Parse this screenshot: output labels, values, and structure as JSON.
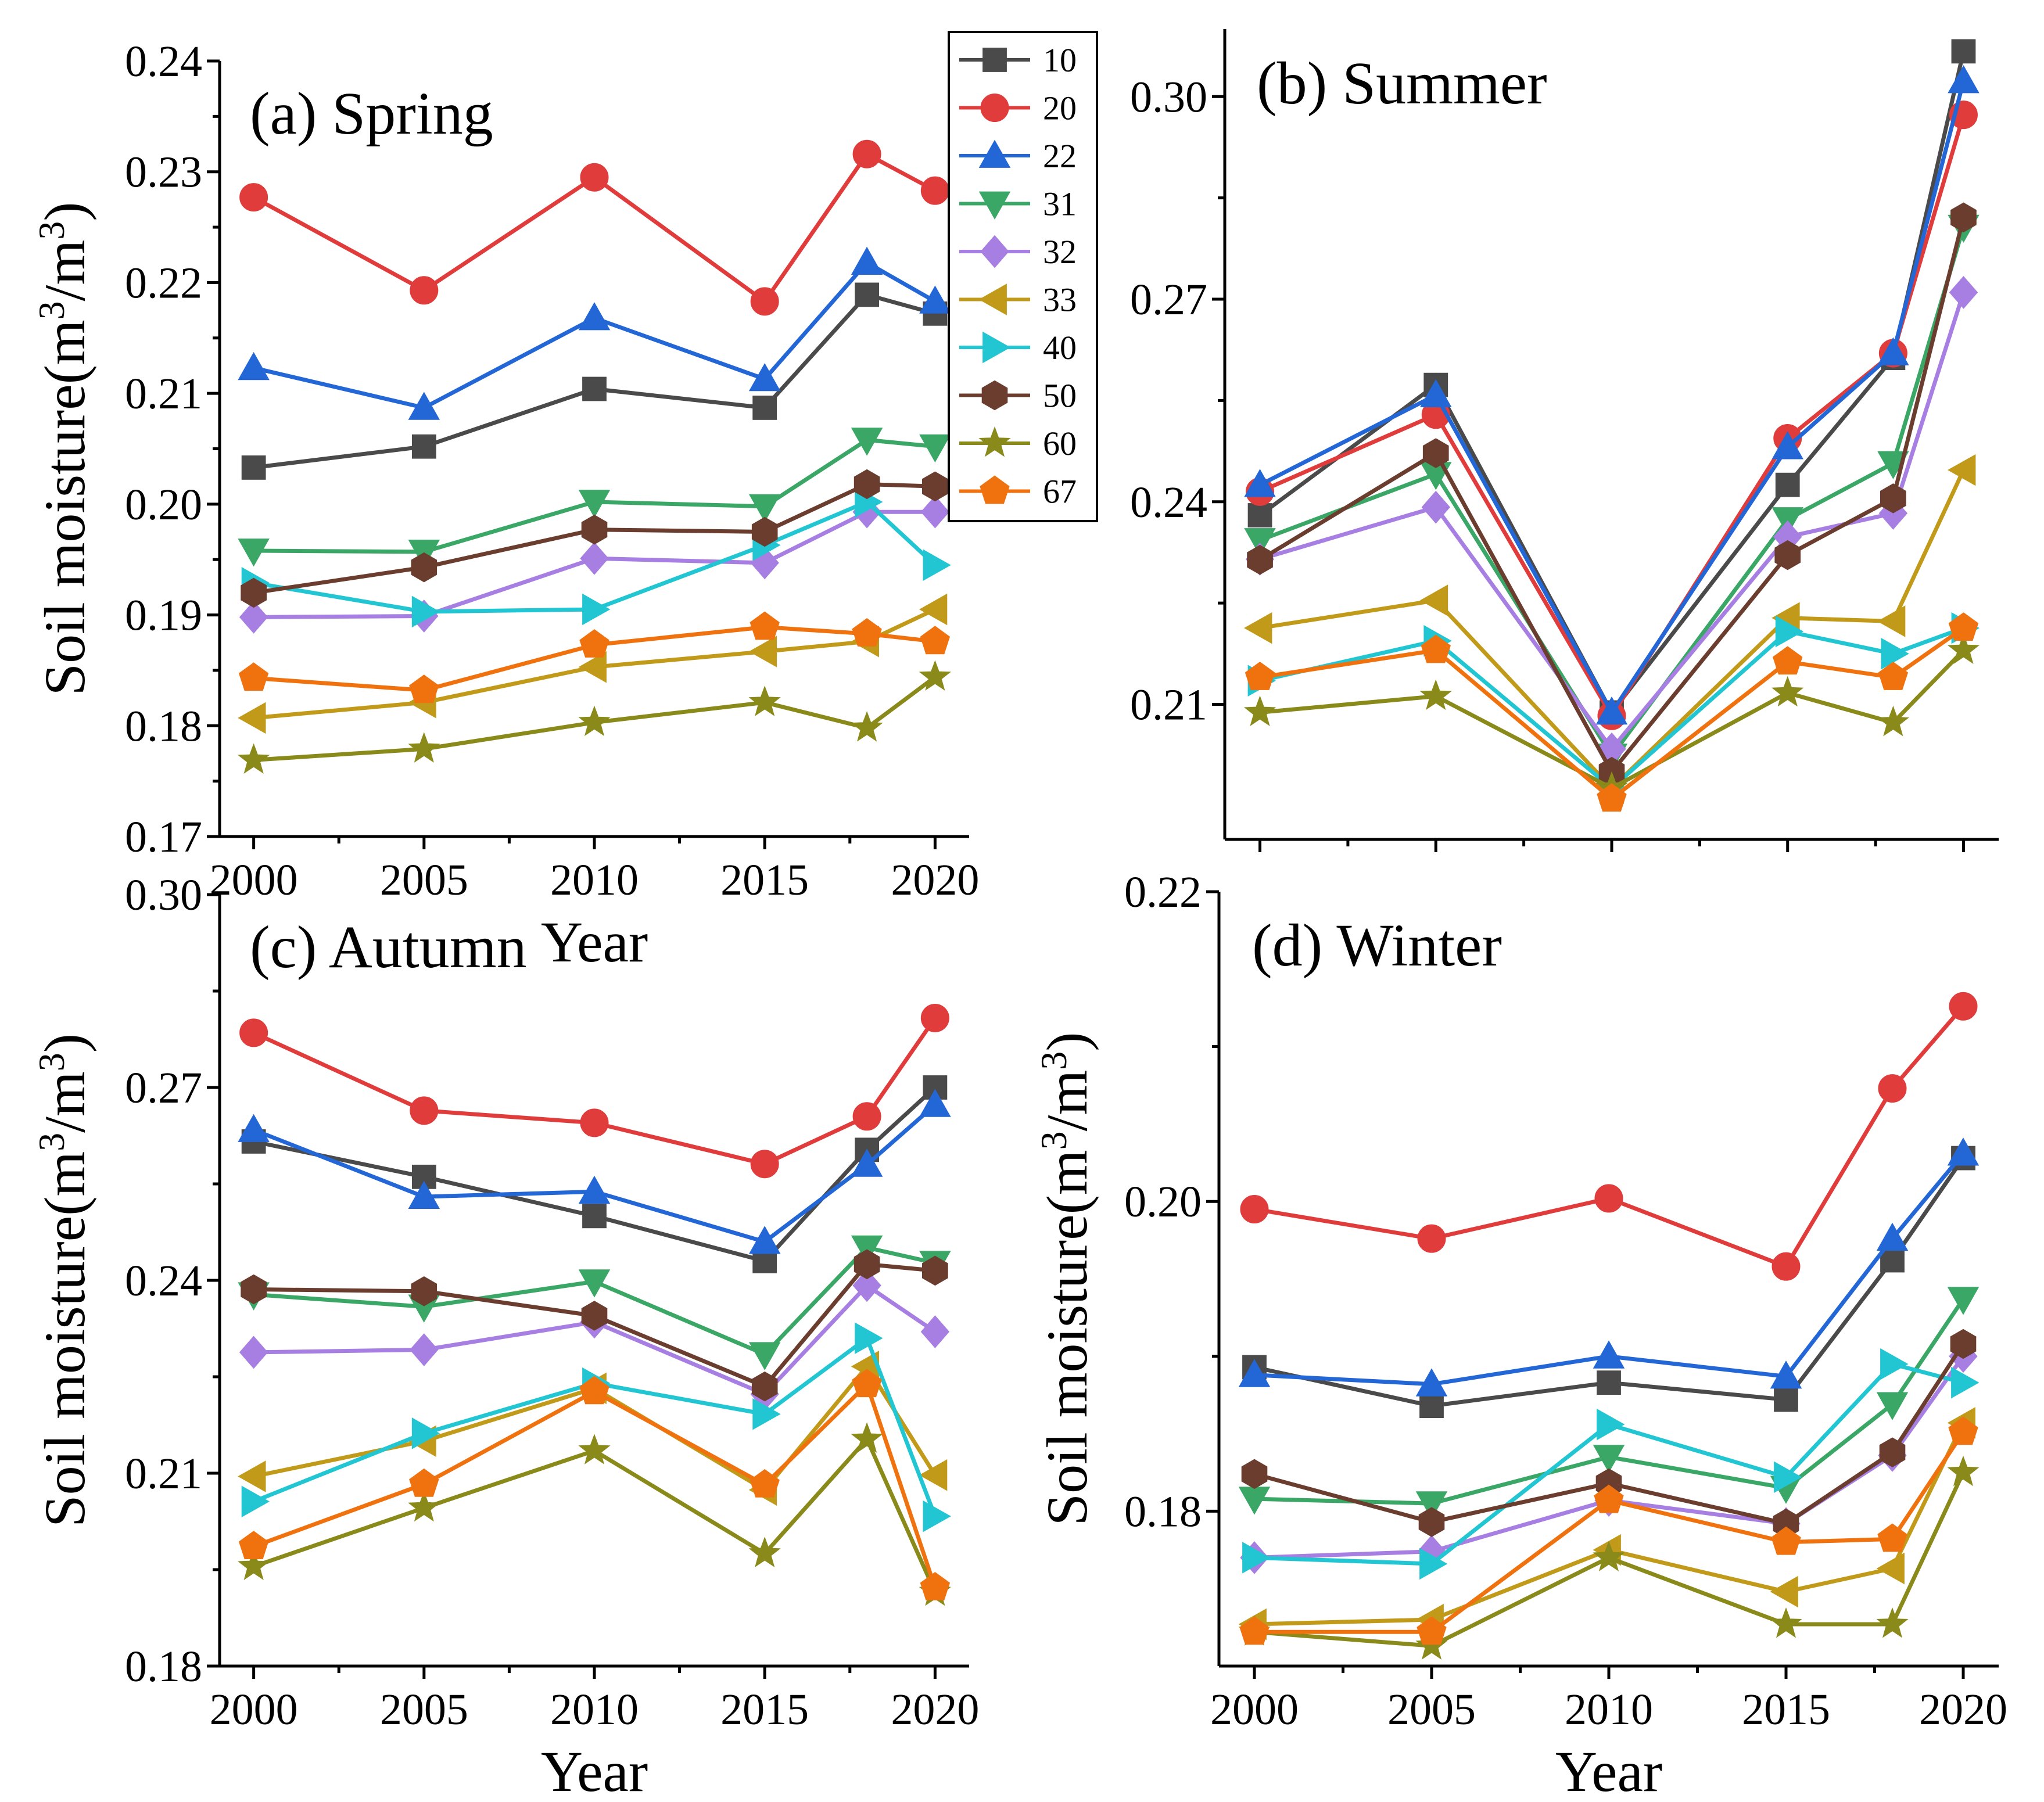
{
  "series_style": [
    {
      "name": "10",
      "color": "#4a4a4a",
      "marker": "square"
    },
    {
      "name": "20",
      "color": "#e03c3c",
      "marker": "circle"
    },
    {
      "name": "22",
      "color": "#2366d6",
      "marker": "triangle-up"
    },
    {
      "name": "31",
      "color": "#3aa766",
      "marker": "triangle-down"
    },
    {
      "name": "32",
      "color": "#a77ee2",
      "marker": "diamond"
    },
    {
      "name": "33",
      "color": "#c29a1a",
      "marker": "triangle-left"
    },
    {
      "name": "40",
      "color": "#22c6d2",
      "marker": "triangle-right"
    },
    {
      "name": "50",
      "color": "#6b3d2e",
      "marker": "hexagon"
    },
    {
      "name": "60",
      "color": "#8a8a1a",
      "marker": "star"
    },
    {
      "name": "67",
      "color": "#f0720f",
      "marker": "pentagon"
    }
  ],
  "legend": {
    "entries": [
      "10",
      "20",
      "22",
      "31",
      "32",
      "33",
      "40",
      "50",
      "60",
      "67"
    ]
  },
  "chart_data": [
    {
      "type": "line",
      "title": "(a) Spring",
      "xlabel": "Year",
      "ylabel": "Soil moisture(m³/m³)",
      "ylabel_main": "Soil moisture(m",
      "ylabel_sup1": "3",
      "ylabel_mid": "/m",
      "ylabel_sup2": "3",
      "ylabel_end": ")",
      "x": [
        2000,
        2005,
        2010,
        2015,
        2018,
        2020
      ],
      "xlim": [
        1999,
        2021
      ],
      "xticks": [
        2000,
        2005,
        2010,
        2015,
        2020
      ],
      "xtick_labels": [
        "2000",
        "2005",
        "2010",
        "2015",
        "2020"
      ],
      "ylim": [
        0.17,
        0.24
      ],
      "yticks": [
        0.17,
        0.18,
        0.19,
        0.2,
        0.21,
        0.22,
        0.23,
        0.24
      ],
      "ytick_labels": [
        "0.17",
        "0.18",
        "0.19",
        "0.20",
        "0.21",
        "0.22",
        "0.23",
        "0.24"
      ],
      "series": [
        {
          "name": "10",
          "values": [
            0.2033,
            0.2052,
            0.2104,
            0.2087,
            0.2189,
            0.2172
          ]
        },
        {
          "name": "20",
          "values": [
            0.2277,
            0.2193,
            0.2295,
            0.2183,
            0.2316,
            0.2283
          ]
        },
        {
          "name": "22",
          "values": [
            0.2123,
            0.2087,
            0.2168,
            0.2113,
            0.2218,
            0.2183
          ]
        },
        {
          "name": "31",
          "values": [
            0.1958,
            0.1957,
            0.2002,
            0.1998,
            0.2058,
            0.2052
          ]
        },
        {
          "name": "32",
          "values": [
            0.1898,
            0.1899,
            0.1951,
            0.1947,
            0.1993,
            0.1993
          ]
        },
        {
          "name": "33",
          "values": [
            0.1807,
            0.1821,
            0.1853,
            0.1867,
            0.1876,
            0.1905
          ]
        },
        {
          "name": "40",
          "values": [
            0.1929,
            0.1903,
            0.1905,
            0.1963,
            0.2002,
            0.1945
          ]
        },
        {
          "name": "50",
          "values": [
            0.192,
            0.1943,
            0.1977,
            0.1975,
            0.2018,
            0.2016
          ]
        },
        {
          "name": "60",
          "values": [
            0.1769,
            0.1779,
            0.1803,
            0.1821,
            0.1798,
            0.1844
          ]
        },
        {
          "name": "67",
          "values": [
            0.1843,
            0.1832,
            0.1873,
            0.1889,
            0.1883,
            0.1876
          ]
        }
      ]
    },
    {
      "type": "line",
      "title": "(b) Summer",
      "xlabel": "",
      "ylabel": "",
      "x": [
        2000,
        2005,
        2010,
        2015,
        2018,
        2020
      ],
      "xlim": [
        1999,
        2021
      ],
      "xticks": [
        2000,
        2005,
        2010,
        2015,
        2020
      ],
      "xtick_labels": [
        "",
        "",
        "",
        "",
        ""
      ],
      "ylim": [
        0.19,
        0.31
      ],
      "yticks": [
        0.21,
        0.24,
        0.27,
        0.3
      ],
      "ytick_labels": [
        "0.21",
        "0.24",
        "0.27",
        "0.30"
      ],
      "series": [
        {
          "name": "10",
          "values": [
            0.238,
            0.2573,
            0.2088,
            0.2425,
            0.2613,
            0.3067
          ]
        },
        {
          "name": "20",
          "values": [
            0.2415,
            0.2529,
            0.2083,
            0.2494,
            0.262,
            0.2973
          ]
        },
        {
          "name": "22",
          "values": [
            0.2425,
            0.2558,
            0.2088,
            0.2481,
            0.262,
            0.3023
          ]
        },
        {
          "name": "31",
          "values": [
            0.2343,
            0.2441,
            0.2024,
            0.2374,
            0.2457,
            0.2807
          ]
        },
        {
          "name": "32",
          "values": [
            0.2315,
            0.2392,
            0.2034,
            0.2348,
            0.2383,
            0.271
          ]
        },
        {
          "name": "33",
          "values": [
            0.2213,
            0.2254,
            0.1976,
            0.2228,
            0.2223,
            0.2447
          ]
        },
        {
          "name": "40",
          "values": [
            0.2135,
            0.2194,
            0.1976,
            0.2208,
            0.2175,
            0.2213
          ]
        },
        {
          "name": "50",
          "values": [
            0.2314,
            0.2472,
            0.2,
            0.2321,
            0.2405,
            0.2821
          ]
        },
        {
          "name": "60",
          "values": [
            0.2088,
            0.2112,
            0.1976,
            0.2117,
            0.2073,
            0.218
          ]
        },
        {
          "name": "67",
          "values": [
            0.214,
            0.218,
            0.196,
            0.2163,
            0.214,
            0.2213
          ]
        }
      ]
    },
    {
      "type": "line",
      "title": "(c) Autumn",
      "xlabel": "Year",
      "ylabel": "Soil moisture(m³/m³)",
      "ylabel_main": "Soil moisture(m",
      "ylabel_sup1": "3",
      "ylabel_mid": "/m",
      "ylabel_sup2": "3",
      "ylabel_end": ")",
      "x": [
        2000,
        2005,
        2010,
        2015,
        2018,
        2020
      ],
      "xlim": [
        1999,
        2021
      ],
      "xticks": [
        2000,
        2005,
        2010,
        2015,
        2020
      ],
      "xtick_labels": [
        "2000",
        "2005",
        "2010",
        "2015",
        "2020"
      ],
      "ylim": [
        0.18,
        0.3
      ],
      "yticks": [
        0.18,
        0.21,
        0.24,
        0.27,
        0.3
      ],
      "ytick_labels": [
        "0.18",
        "0.21",
        "0.24",
        "0.27",
        "0.30"
      ],
      "series": [
        {
          "name": "10",
          "values": [
            0.2616,
            0.2561,
            0.25,
            0.243,
            0.2603,
            0.27
          ]
        },
        {
          "name": "20",
          "values": [
            0.2785,
            0.2664,
            0.2645,
            0.2581,
            0.2655,
            0.2808
          ]
        },
        {
          "name": "22",
          "values": [
            0.2634,
            0.253,
            0.2538,
            0.246,
            0.258,
            0.2673
          ]
        },
        {
          "name": "31",
          "values": [
            0.2378,
            0.2359,
            0.2398,
            0.2285,
            0.2451,
            0.2427
          ]
        },
        {
          "name": "32",
          "values": [
            0.2288,
            0.2292,
            0.2335,
            0.2223,
            0.2392,
            0.232
          ]
        },
        {
          "name": "33",
          "values": [
            0.2095,
            0.215,
            0.2232,
            0.2074,
            0.2266,
            0.2097
          ]
        },
        {
          "name": "40",
          "values": [
            0.2056,
            0.2162,
            0.224,
            0.2192,
            0.231,
            0.2033
          ]
        },
        {
          "name": "50",
          "values": [
            0.2386,
            0.2383,
            0.2345,
            0.2235,
            0.2425,
            0.2415
          ]
        },
        {
          "name": "60",
          "values": [
            0.1955,
            0.2046,
            0.2135,
            0.1975,
            0.2153,
            0.1915
          ]
        },
        {
          "name": "67",
          "values": [
            0.1986,
            0.2083,
            0.2227,
            0.2082,
            0.2238,
            0.1922
          ]
        }
      ]
    },
    {
      "type": "line",
      "title": "(d) Winter",
      "xlabel": "Year",
      "ylabel": "Soil moisture(m³/m³)",
      "ylabel_main": "Soil moisture(m",
      "ylabel_sup1": "3",
      "ylabel_mid": "/m",
      "ylabel_sup2": "3",
      "ylabel_end": ")",
      "x": [
        2000,
        2005,
        2010,
        2015,
        2018,
        2020
      ],
      "xlim": [
        1999,
        2021
      ],
      "xticks": [
        2000,
        2005,
        2010,
        2015,
        2020
      ],
      "xtick_labels": [
        "2000",
        "2005",
        "2010",
        "2015",
        "2020"
      ],
      "ylim": [
        0.17,
        0.22
      ],
      "yticks": [
        0.18,
        0.2,
        0.22
      ],
      "ytick_labels": [
        "0.18",
        "0.20",
        "0.22"
      ],
      "series": [
        {
          "name": "10",
          "values": [
            0.1893,
            0.1868,
            0.1883,
            0.1872,
            0.1962,
            0.2028
          ]
        },
        {
          "name": "20",
          "values": [
            0.1995,
            0.1976,
            0.2002,
            0.1958,
            0.2073,
            0.2126
          ]
        },
        {
          "name": "22",
          "values": [
            0.1888,
            0.1882,
            0.19,
            0.1887,
            0.1976,
            0.2031
          ]
        },
        {
          "name": "31",
          "values": [
            0.1808,
            0.1805,
            0.1835,
            0.1815,
            0.1869,
            0.1937
          ]
        },
        {
          "name": "32",
          "values": [
            0.177,
            0.1774,
            0.1807,
            0.1792,
            0.1836,
            0.19
          ]
        },
        {
          "name": "33",
          "values": [
            0.1727,
            0.173,
            0.1775,
            0.1748,
            0.1763,
            0.1857
          ]
        },
        {
          "name": "40",
          "values": [
            0.177,
            0.1766,
            0.1856,
            0.1822,
            0.1895,
            0.1883
          ]
        },
        {
          "name": "50",
          "values": [
            0.1824,
            0.1793,
            0.1818,
            0.1792,
            0.1838,
            0.1908
          ]
        },
        {
          "name": "60",
          "values": [
            0.1722,
            0.1713,
            0.177,
            0.1727,
            0.1727,
            0.1825
          ]
        },
        {
          "name": "67",
          "values": [
            0.1722,
            0.1722,
            0.1807,
            0.178,
            0.1782,
            0.1851
          ]
        }
      ]
    }
  ]
}
